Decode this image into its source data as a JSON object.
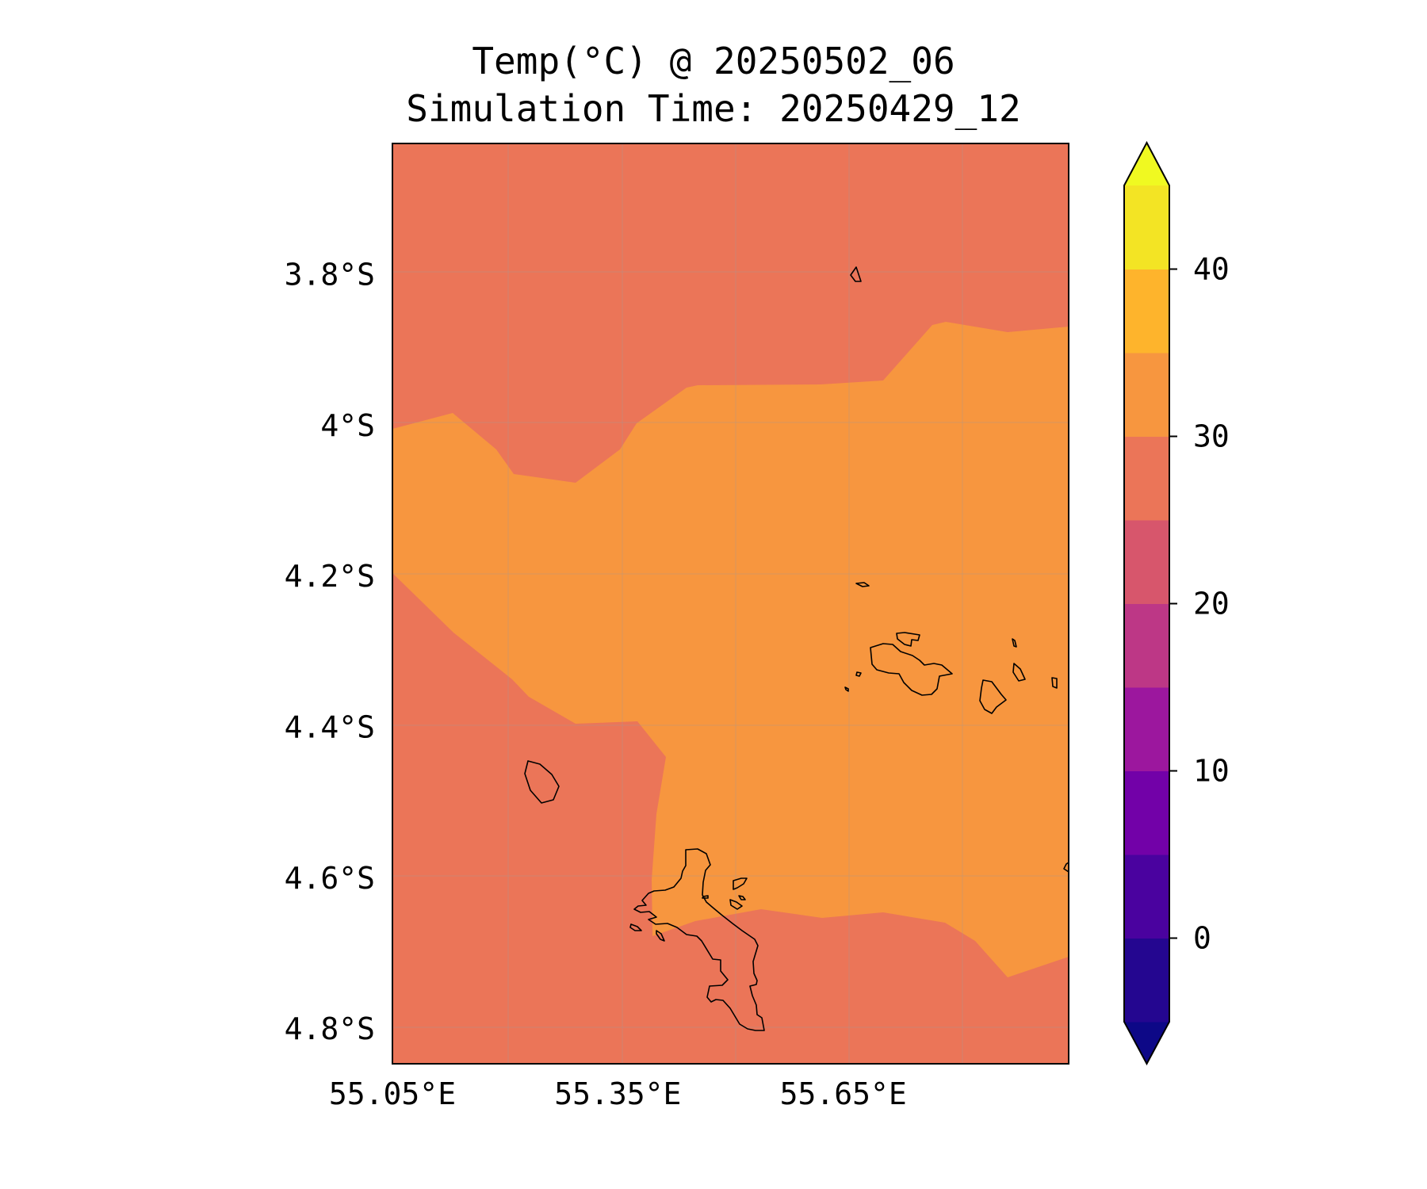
{
  "title": "Temp(°C) @ 20250502_06",
  "subtitle": "Simulation Time: 20250429_12",
  "map": {
    "lon_range": [
      55.05,
      55.95
    ],
    "lat_range": [
      -4.845,
      -3.625
    ],
    "x_ticks": [
      {
        "value": 55.05,
        "label": "55.05°E"
      },
      {
        "value": 55.35,
        "label": "55.35°E"
      },
      {
        "value": 55.65,
        "label": "55.65°E"
      }
    ],
    "y_ticks": [
      {
        "value": -3.8,
        "label": "3.8°S"
      },
      {
        "value": -4.0,
        "label": "4°S"
      },
      {
        "value": -4.2,
        "label": "4.2°S"
      },
      {
        "value": -4.4,
        "label": "4.4°S"
      },
      {
        "value": -4.6,
        "label": "4.6°S"
      },
      {
        "value": -4.8,
        "label": "4.8°S"
      }
    ],
    "grid": true,
    "fields": [
      {
        "band": "25-30",
        "color": "#EB7558"
      },
      {
        "band": "30-35",
        "color": "#F7963F"
      }
    ]
  },
  "colorbar": {
    "min": -5,
    "max": 45,
    "step": 5,
    "extend": "both",
    "under_color": "#0D0887",
    "over_color": "#F0F921",
    "colors": [
      "#240690",
      "#4A029F",
      "#7201A8",
      "#9C179E",
      "#BD3786",
      "#D7566C",
      "#EB7558",
      "#F7963F",
      "#FEB42C",
      "#F3E424"
    ],
    "ticks": [
      {
        "value": 0,
        "label": "0"
      },
      {
        "value": 10,
        "label": "10"
      },
      {
        "value": 20,
        "label": "20"
      },
      {
        "value": 30,
        "label": "30"
      },
      {
        "value": 40,
        "label": "40"
      }
    ]
  },
  "colors": {
    "coastline": "#000000",
    "gridline": "#9a9a9a"
  }
}
